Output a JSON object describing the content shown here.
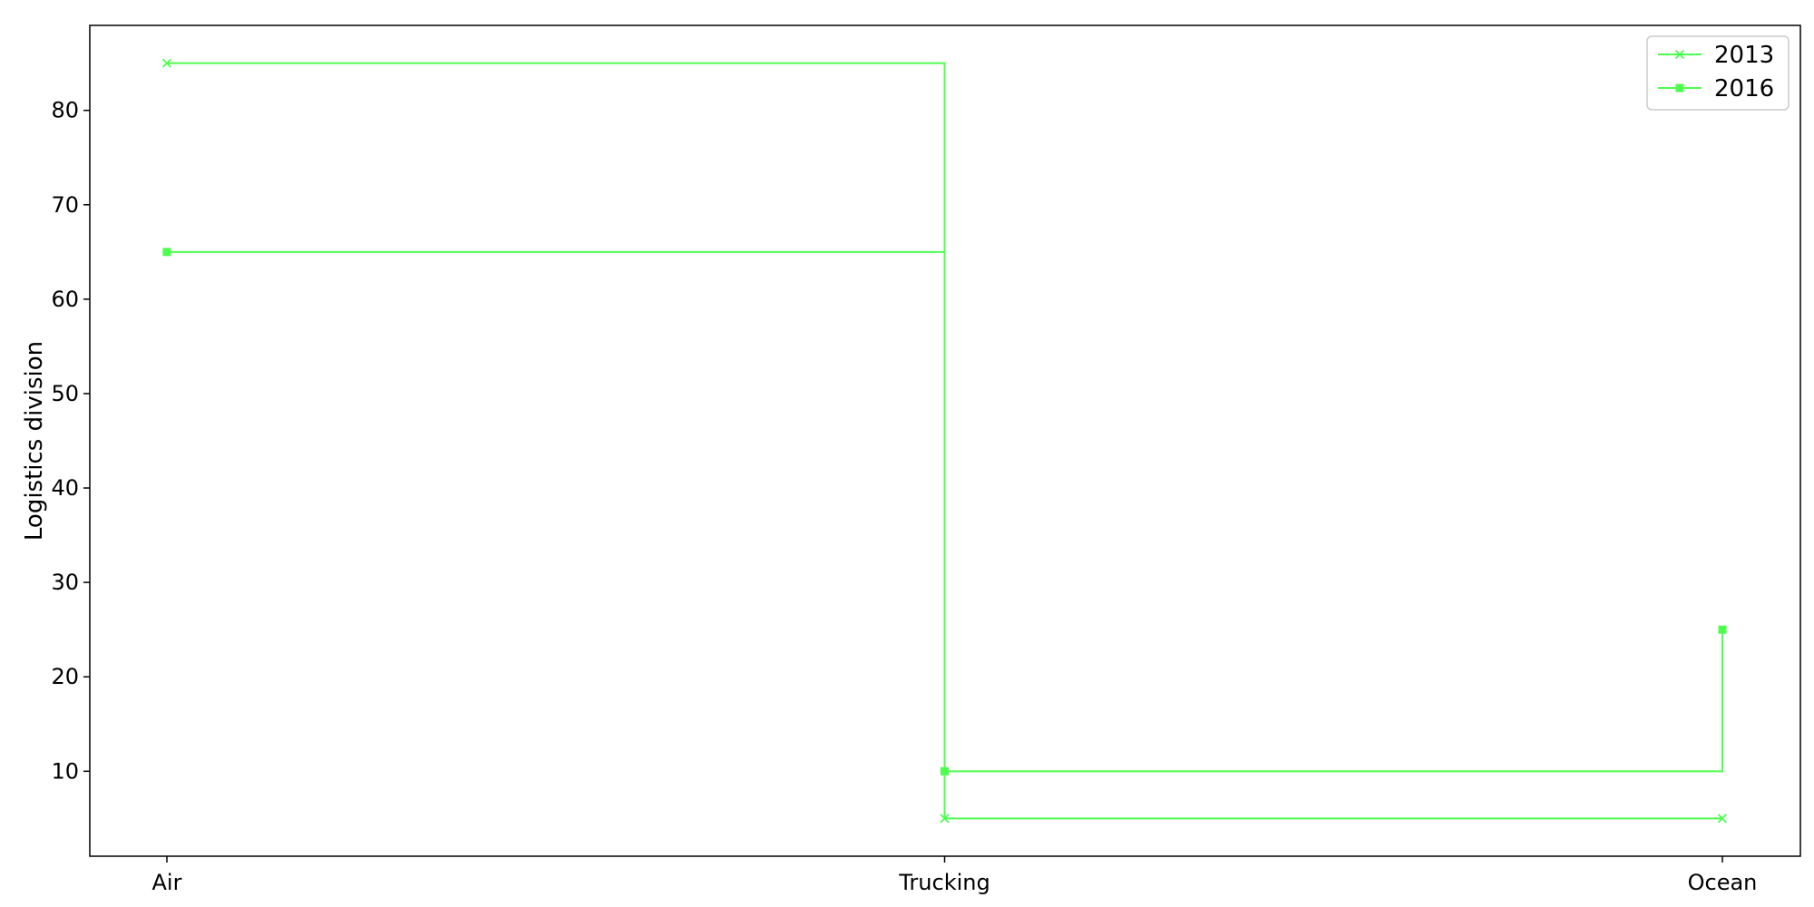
{
  "chart_data": {
    "type": "line",
    "step": "post",
    "categories": [
      "Air",
      "Trucking",
      "Ocean"
    ],
    "title": "",
    "xlabel": "",
    "ylabel": "Logistics division",
    "ylim": [
      1,
      89
    ],
    "yticks": [
      10,
      20,
      30,
      40,
      50,
      60,
      70,
      80
    ],
    "grid": false,
    "legend_position": "top-right",
    "series": [
      {
        "name": "2013",
        "values": [
          85,
          5,
          5
        ],
        "color": "#4dff4d",
        "marker": "x"
      },
      {
        "name": "2016",
        "values": [
          65,
          10,
          25
        ],
        "color": "#4dff4d",
        "marker": "square"
      }
    ]
  }
}
